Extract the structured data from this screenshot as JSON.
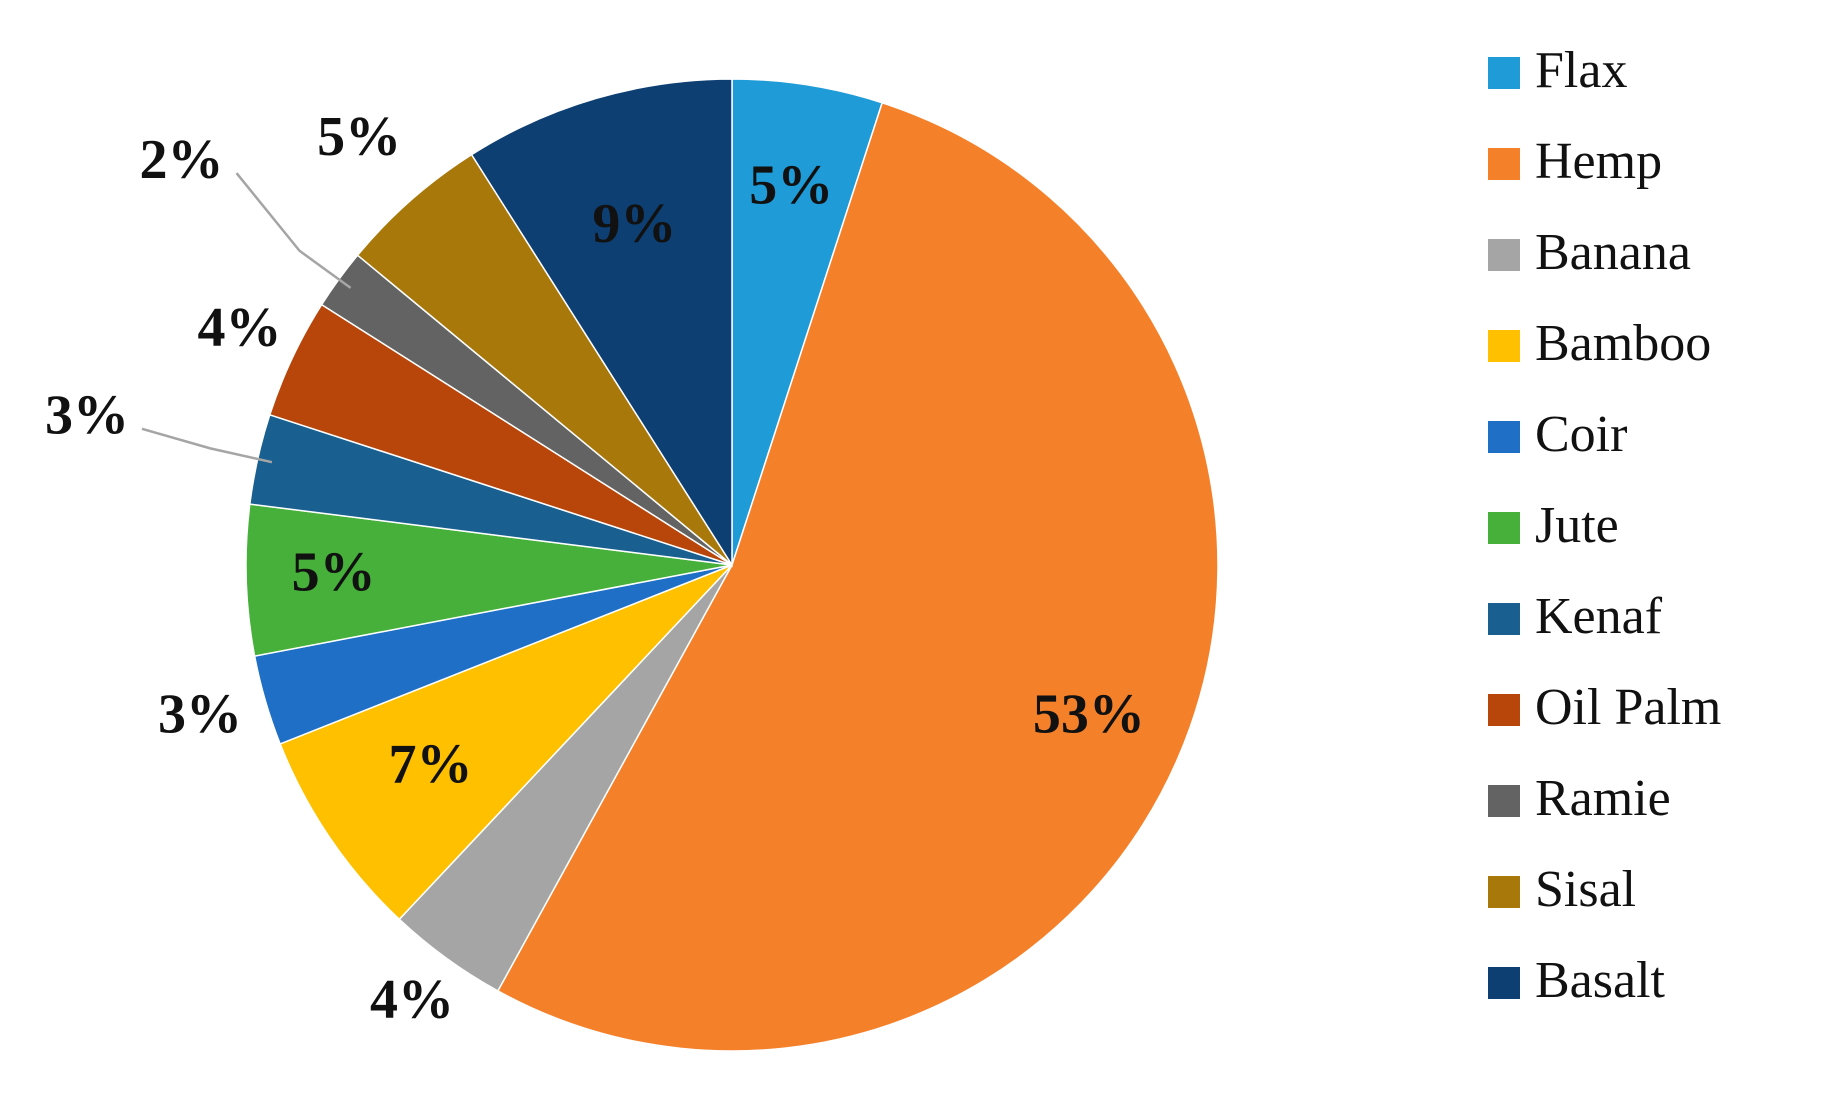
{
  "chart_data": {
    "type": "pie",
    "categories": [
      "Flax",
      "Hemp",
      "Banana",
      "Bamboo",
      "Coir",
      "Jute",
      "Kenaf",
      "Oil Palm",
      "Ramie",
      "Sisal",
      "Basalt"
    ],
    "values": [
      5,
      53,
      4,
      7,
      3,
      5,
      3,
      4,
      2,
      5,
      9
    ],
    "value_labels": [
      "5%",
      "53%",
      "4%",
      "7%",
      "3%",
      "5%",
      "3%",
      "4%",
      "2%",
      "5%",
      "9%"
    ],
    "colors": [
      "#1f9bd7",
      "#f5802a",
      "#a5a5a5",
      "#ffc000",
      "#1f6fc6",
      "#46b03a",
      "#195f8f",
      "#b8460b",
      "#636363",
      "#a8780b",
      "#0e3f73"
    ],
    "legend": "right"
  }
}
